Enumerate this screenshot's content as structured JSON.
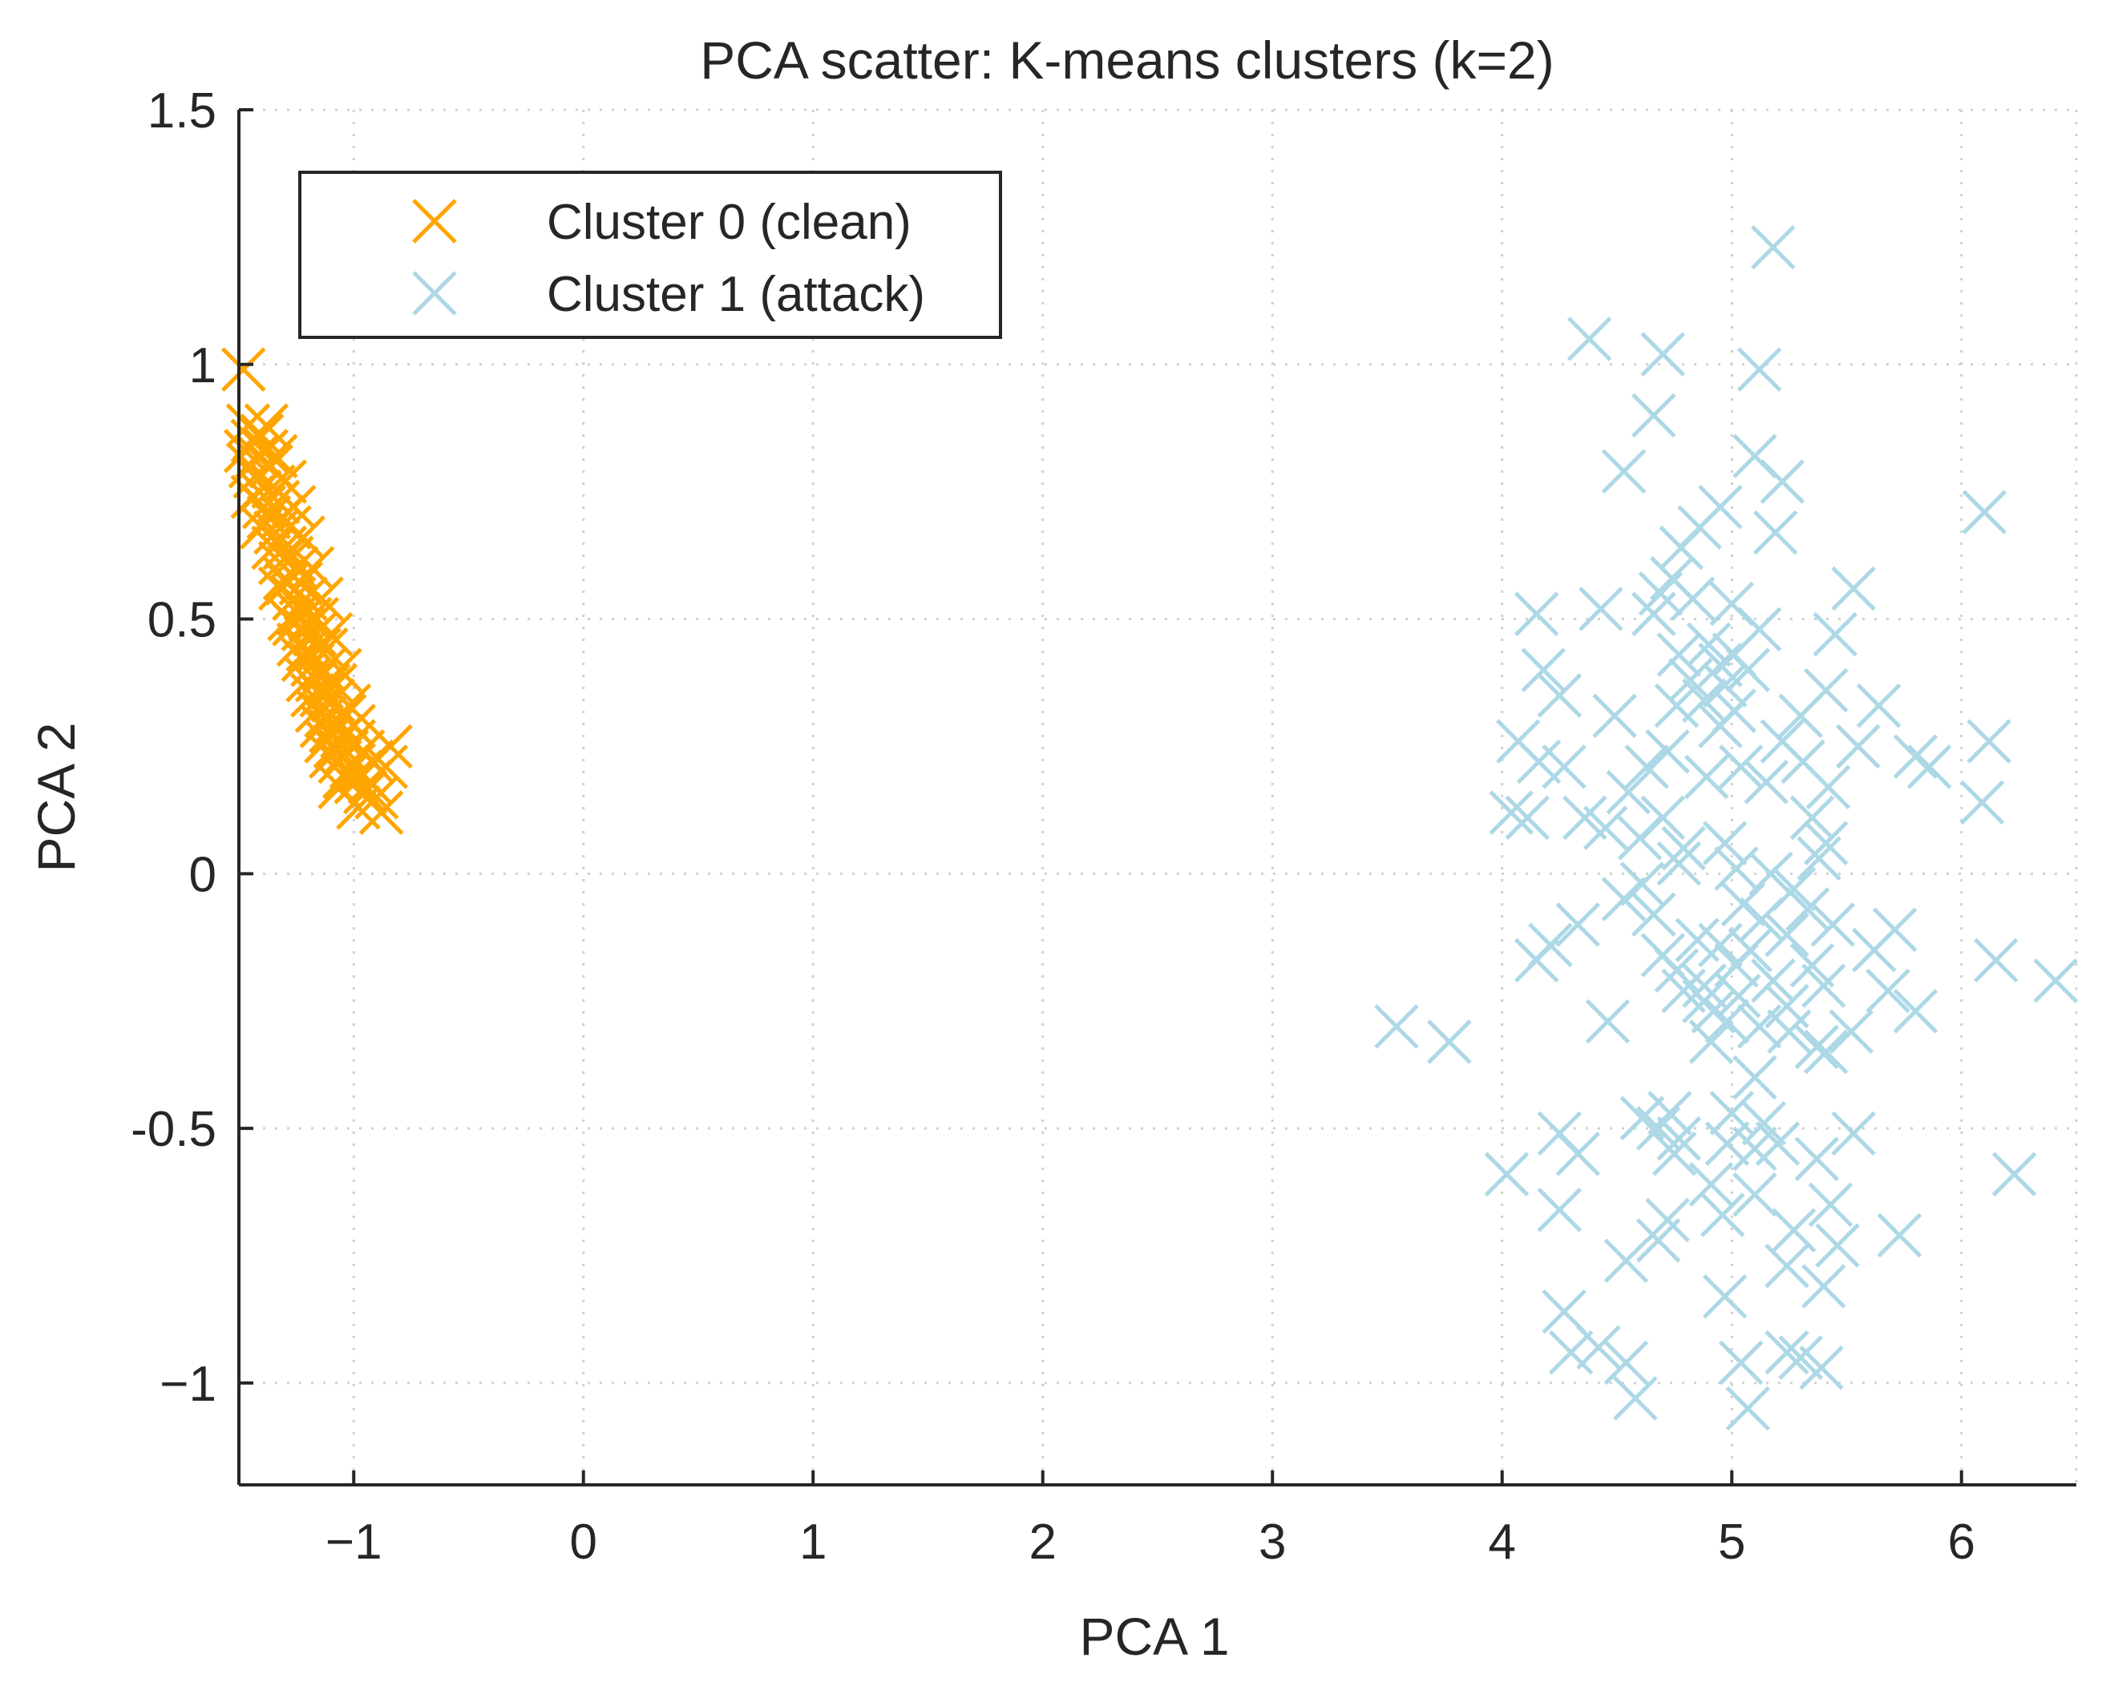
{
  "chart_data": {
    "type": "scatter",
    "title": "PCA scatter: K-means clusters (k=2)",
    "xlabel": "PCA 1",
    "ylabel": "PCA 2",
    "xlim": [
      -1.5,
      6.5
    ],
    "ylim": [
      -1.2,
      1.5
    ],
    "xticks": [
      -1,
      0,
      1,
      2,
      3,
      4,
      5,
      6
    ],
    "xtick_labels": [
      "−1",
      "0",
      "1",
      "2",
      "3",
      "4",
      "5",
      "6"
    ],
    "yticks": [
      1.5,
      1,
      0.5,
      0,
      -0.5,
      -1
    ],
    "ytick_labels": [
      "1.5",
      "1",
      "0.5",
      "0",
      "-0.5",
      "−1"
    ],
    "grid": true,
    "legend_position": "top-left",
    "series": [
      {
        "name": "Cluster 0 (clean)",
        "color": "#FFA500",
        "marker": "x",
        "points": [
          [
            -1.48,
            0.99
          ],
          [
            -1.46,
            0.88
          ],
          [
            -1.44,
            0.85
          ],
          [
            -1.42,
            0.82
          ],
          [
            -1.45,
            0.8
          ],
          [
            -1.4,
            0.86
          ],
          [
            -1.38,
            0.83
          ],
          [
            -1.43,
            0.78
          ],
          [
            -1.41,
            0.75
          ],
          [
            -1.36,
            0.8
          ],
          [
            -1.39,
            0.72
          ],
          [
            -1.35,
            0.76
          ],
          [
            -1.37,
            0.7
          ],
          [
            -1.33,
            0.73
          ],
          [
            -1.34,
            0.67
          ],
          [
            -1.31,
            0.7
          ],
          [
            -1.3,
            0.64
          ],
          [
            -1.28,
            0.68
          ],
          [
            -1.32,
            0.61
          ],
          [
            -1.27,
            0.62
          ],
          [
            -1.29,
            0.57
          ],
          [
            -1.25,
            0.6
          ],
          [
            -1.26,
            0.54
          ],
          [
            -1.23,
            0.57
          ],
          [
            -1.24,
            0.51
          ],
          [
            -1.21,
            0.54
          ],
          [
            -1.22,
            0.48
          ],
          [
            -1.19,
            0.5
          ],
          [
            -1.2,
            0.44
          ],
          [
            -1.17,
            0.47
          ],
          [
            -1.18,
            0.41
          ],
          [
            -1.15,
            0.44
          ],
          [
            -1.16,
            0.38
          ],
          [
            -1.13,
            0.4
          ],
          [
            -1.14,
            0.35
          ],
          [
            -1.11,
            0.37
          ],
          [
            -1.12,
            0.31
          ],
          [
            -1.09,
            0.34
          ],
          [
            -1.1,
            0.28
          ],
          [
            -1.07,
            0.3
          ],
          [
            -1.08,
            0.25
          ],
          [
            -1.05,
            0.27
          ],
          [
            -1.06,
            0.22
          ],
          [
            -1.03,
            0.24
          ],
          [
            -1.04,
            0.19
          ],
          [
            -1.01,
            0.21
          ],
          [
            -0.99,
            0.18
          ],
          [
            -0.97,
            0.2
          ],
          [
            -0.95,
            0.16
          ],
          [
            -0.93,
            0.18
          ],
          [
            -0.9,
            0.15
          ],
          [
            -0.88,
            0.12
          ],
          [
            -0.86,
            0.21
          ],
          [
            -0.84,
            0.25
          ],
          [
            -0.98,
            0.13
          ],
          [
            -1.0,
            0.26
          ],
          [
            -1.02,
            0.33
          ],
          [
            -1.06,
            0.4
          ],
          [
            -1.1,
            0.47
          ],
          [
            -1.14,
            0.54
          ],
          [
            -1.18,
            0.6
          ],
          [
            -1.22,
            0.66
          ],
          [
            -1.26,
            0.72
          ],
          [
            -1.3,
            0.77
          ],
          [
            -1.34,
            0.82
          ],
          [
            -1.38,
            0.88
          ],
          [
            -1.3,
            0.58
          ],
          [
            -1.26,
            0.49
          ],
          [
            -1.22,
            0.42
          ],
          [
            -1.18,
            0.35
          ],
          [
            -1.14,
            0.29
          ],
          [
            -1.1,
            0.23
          ],
          [
            -1.06,
            0.17
          ],
          [
            -1.28,
            0.5
          ],
          [
            -1.24,
            0.45
          ],
          [
            -1.2,
            0.38
          ],
          [
            -1.16,
            0.32
          ],
          [
            -1.12,
            0.26
          ],
          [
            -1.35,
            0.64
          ],
          [
            -1.32,
            0.56
          ],
          [
            -1.4,
            0.68
          ],
          [
            -1.44,
            0.74
          ],
          [
            -1.47,
            0.83
          ],
          [
            -1.16,
            0.5
          ],
          [
            -1.12,
            0.44
          ],
          [
            -1.08,
            0.37
          ],
          [
            -1.04,
            0.31
          ],
          [
            -1.0,
            0.29
          ],
          [
            -0.96,
            0.24
          ],
          [
            -0.92,
            0.22
          ]
        ]
      },
      {
        "name": "Cluster 1 (attack)",
        "color": "#ADD8E6",
        "marker": "x",
        "points": [
          [
            5.18,
            1.23
          ],
          [
            4.38,
            1.05
          ],
          [
            4.7,
            1.02
          ],
          [
            5.12,
            0.99
          ],
          [
            4.66,
            0.9
          ],
          [
            4.53,
            0.79
          ],
          [
            5.1,
            0.82
          ],
          [
            5.22,
            0.77
          ],
          [
            4.95,
            0.72
          ],
          [
            6.1,
            0.71
          ],
          [
            4.86,
            0.68
          ],
          [
            5.19,
            0.67
          ],
          [
            4.78,
            0.64
          ],
          [
            4.74,
            0.58
          ],
          [
            5.53,
            0.56
          ],
          [
            4.69,
            0.55
          ],
          [
            4.83,
            0.54
          ],
          [
            5.0,
            0.53
          ],
          [
            4.15,
            0.51
          ],
          [
            4.43,
            0.52
          ],
          [
            4.66,
            0.51
          ],
          [
            5.12,
            0.48
          ],
          [
            5.45,
            0.47
          ],
          [
            4.9,
            0.45
          ],
          [
            5.01,
            0.43
          ],
          [
            4.77,
            0.43
          ],
          [
            4.95,
            0.41
          ],
          [
            5.07,
            0.4
          ],
          [
            4.18,
            0.4
          ],
          [
            4.82,
            0.38
          ],
          [
            4.97,
            0.37
          ],
          [
            4.25,
            0.35
          ],
          [
            4.88,
            0.34
          ],
          [
            5.41,
            0.36
          ],
          [
            5.64,
            0.33
          ],
          [
            4.76,
            0.33
          ],
          [
            5.01,
            0.32
          ],
          [
            4.49,
            0.31
          ],
          [
            5.3,
            0.31
          ],
          [
            4.95,
            0.29
          ],
          [
            4.07,
            0.26
          ],
          [
            4.72,
            0.24
          ],
          [
            5.22,
            0.26
          ],
          [
            5.55,
            0.25
          ],
          [
            6.12,
            0.26
          ],
          [
            4.16,
            0.22
          ],
          [
            4.27,
            0.21
          ],
          [
            4.63,
            0.21
          ],
          [
            5.04,
            0.21
          ],
          [
            5.31,
            0.22
          ],
          [
            5.8,
            0.23
          ],
          [
            5.86,
            0.21
          ],
          [
            4.89,
            0.19
          ],
          [
            5.15,
            0.18
          ],
          [
            5.42,
            0.17
          ],
          [
            4.55,
            0.16
          ],
          [
            4.04,
            0.12
          ],
          [
            4.11,
            0.11
          ],
          [
            4.36,
            0.11
          ],
          [
            4.45,
            0.09
          ],
          [
            4.7,
            0.11
          ],
          [
            5.35,
            0.11
          ],
          [
            6.09,
            0.14
          ],
          [
            4.6,
            0.07
          ],
          [
            4.79,
            0.05
          ],
          [
            4.97,
            0.06
          ],
          [
            5.41,
            0.06
          ],
          [
            5.38,
            0.03
          ],
          [
            4.77,
            0.02
          ],
          [
            5.02,
            0.01
          ],
          [
            5.17,
            0.0
          ],
          [
            4.61,
            -0.02
          ],
          [
            5.27,
            -0.03
          ],
          [
            4.53,
            -0.05
          ],
          [
            5.05,
            -0.06
          ],
          [
            5.33,
            -0.07
          ],
          [
            4.66,
            -0.08
          ],
          [
            5.13,
            -0.09
          ],
          [
            5.44,
            -0.1
          ],
          [
            4.33,
            -0.1
          ],
          [
            5.71,
            -0.11
          ],
          [
            5.24,
            -0.12
          ],
          [
            4.85,
            -0.13
          ],
          [
            4.95,
            -0.14
          ],
          [
            4.21,
            -0.14
          ],
          [
            5.08,
            -0.15
          ],
          [
            5.62,
            -0.15
          ],
          [
            4.7,
            -0.16
          ],
          [
            4.15,
            -0.17
          ],
          [
            5.02,
            -0.18
          ],
          [
            5.35,
            -0.18
          ],
          [
            4.76,
            -0.19
          ],
          [
            6.15,
            -0.17
          ],
          [
            5.18,
            -0.21
          ],
          [
            4.88,
            -0.22
          ],
          [
            5.4,
            -0.22
          ],
          [
            4.79,
            -0.23
          ],
          [
            5.68,
            -0.23
          ],
          [
            6.41,
            -0.21
          ],
          [
            5.03,
            -0.24
          ],
          [
            4.88,
            -0.25
          ],
          [
            5.24,
            -0.26
          ],
          [
            4.92,
            -0.27
          ],
          [
            5.8,
            -0.27
          ],
          [
            4.46,
            -0.29
          ],
          [
            4.98,
            -0.29
          ],
          [
            5.12,
            -0.3
          ],
          [
            3.54,
            -0.3
          ],
          [
            3.77,
            -0.33
          ],
          [
            5.25,
            -0.31
          ],
          [
            5.52,
            -0.31
          ],
          [
            4.91,
            -0.33
          ],
          [
            5.37,
            -0.34
          ],
          [
            5.41,
            -0.35
          ],
          [
            5.1,
            -0.4
          ],
          [
            4.73,
            -0.47
          ],
          [
            5.0,
            -0.47
          ],
          [
            4.61,
            -0.48
          ],
          [
            4.68,
            -0.5
          ],
          [
            5.14,
            -0.49
          ],
          [
            4.25,
            -0.51
          ],
          [
            5.53,
            -0.51
          ],
          [
            4.77,
            -0.52
          ],
          [
            4.98,
            -0.53
          ],
          [
            5.1,
            -0.54
          ],
          [
            5.2,
            -0.53
          ],
          [
            4.33,
            -0.55
          ],
          [
            4.75,
            -0.55
          ],
          [
            5.37,
            -0.56
          ],
          [
            4.02,
            -0.59
          ],
          [
            6.23,
            -0.59
          ],
          [
            4.91,
            -0.61
          ],
          [
            5.1,
            -0.63
          ],
          [
            4.25,
            -0.66
          ],
          [
            5.43,
            -0.65
          ],
          [
            4.96,
            -0.67
          ],
          [
            4.72,
            -0.68
          ],
          [
            5.27,
            -0.7
          ],
          [
            5.73,
            -0.71
          ],
          [
            4.68,
            -0.72
          ],
          [
            5.46,
            -0.73
          ],
          [
            4.54,
            -0.76
          ],
          [
            5.24,
            -0.77
          ],
          [
            5.4,
            -0.81
          ],
          [
            4.97,
            -0.83
          ],
          [
            4.27,
            -0.86
          ],
          [
            4.3,
            -0.94
          ],
          [
            4.42,
            -0.93
          ],
          [
            5.24,
            -0.94
          ],
          [
            4.54,
            -0.96
          ],
          [
            5.3,
            -0.95
          ],
          [
            5.04,
            -0.96
          ],
          [
            4.58,
            -1.03
          ],
          [
            5.07,
            -1.05
          ],
          [
            5.39,
            -0.97
          ]
        ]
      }
    ]
  }
}
